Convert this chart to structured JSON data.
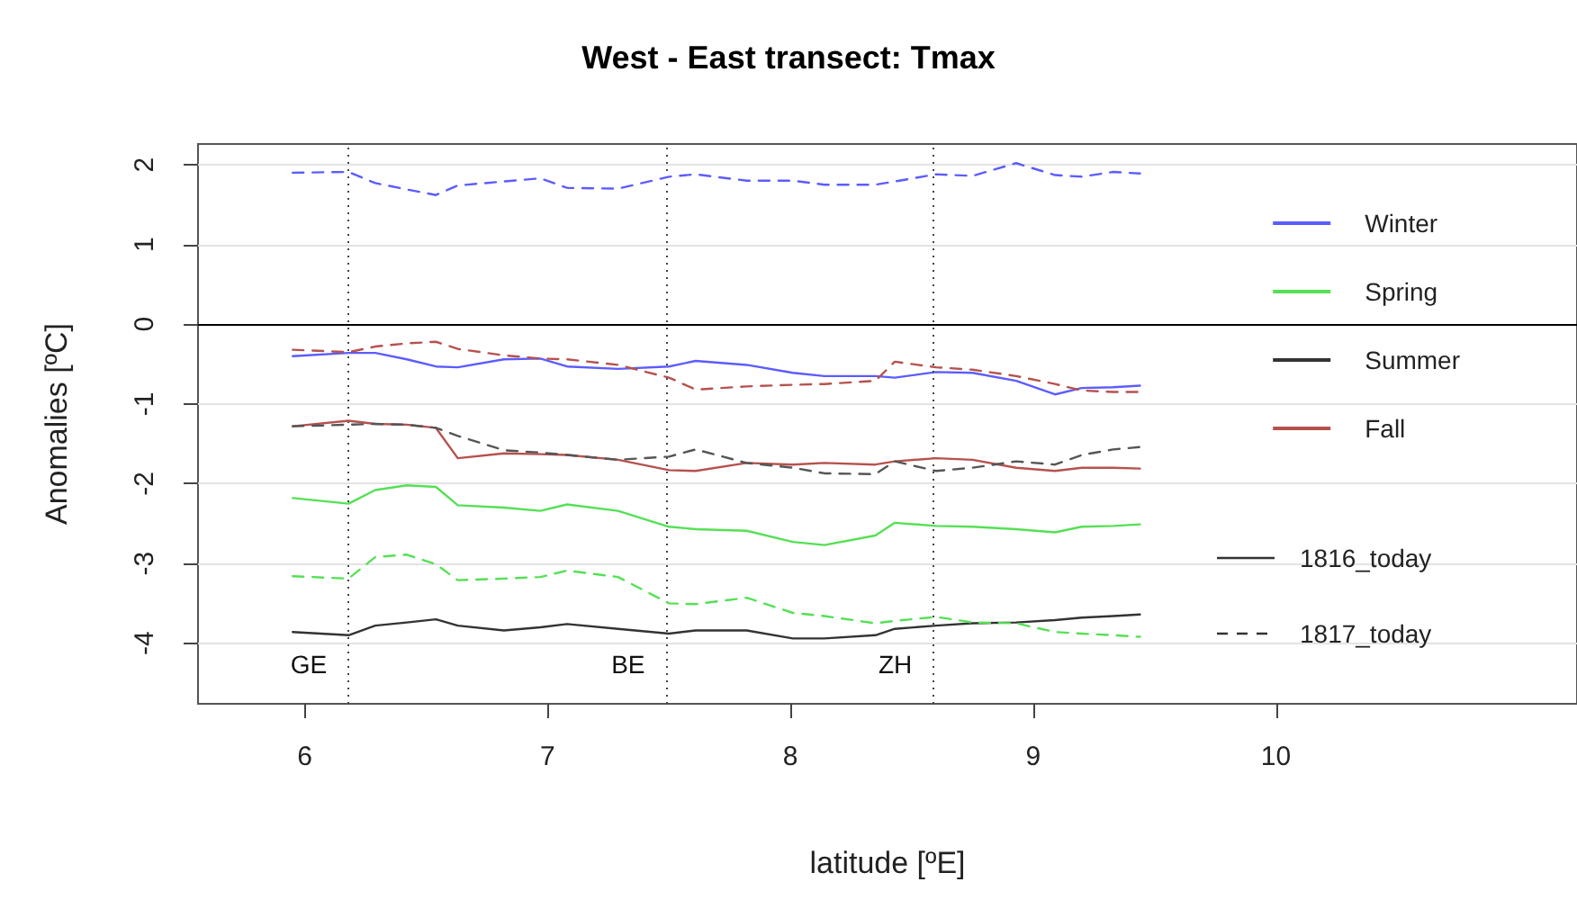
{
  "chart_data": {
    "type": "line",
    "title": "West - East transect: Tmax",
    "xlabel": "latitude [ºE]",
    "ylabel": "Anomalies [ºC]",
    "x": [
      5.95,
      6.18,
      6.29,
      6.42,
      6.54,
      6.63,
      6.82,
      6.97,
      7.08,
      7.29,
      7.5,
      7.61,
      7.82,
      8.01,
      8.14,
      8.35,
      8.43,
      8.6,
      8.75,
      8.93,
      9.09,
      9.2,
      9.33,
      9.44
    ],
    "series": [
      {
        "name": "Winter",
        "color": "#5c5cff",
        "line_style": "solid",
        "values": [
          -0.4,
          -0.36,
          -0.36,
          -0.44,
          -0.53,
          -0.54,
          -0.44,
          -0.43,
          -0.53,
          -0.56,
          -0.53,
          -0.46,
          -0.51,
          -0.61,
          -0.65,
          -0.65,
          -0.67,
          -0.6,
          -0.61,
          -0.71,
          -0.88,
          -0.8,
          -0.79,
          -0.77
        ]
      },
      {
        "name": "Spring",
        "color": "#55e055",
        "line_style": "solid",
        "values": [
          -2.18,
          -2.25,
          -2.08,
          -2.02,
          -2.04,
          -2.27,
          -2.3,
          -2.34,
          -2.26,
          -2.34,
          -2.54,
          -2.57,
          -2.59,
          -2.73,
          -2.77,
          -2.65,
          -2.49,
          -2.53,
          -2.54,
          -2.57,
          -2.61,
          -2.54,
          -2.53,
          -2.51
        ]
      },
      {
        "name": "Summer",
        "color": "#333333",
        "line_style": "solid",
        "values": [
          -3.86,
          -3.9,
          -3.78,
          -3.74,
          -3.7,
          -3.78,
          -3.84,
          -3.8,
          -3.76,
          -3.82,
          -3.88,
          -3.84,
          -3.84,
          -3.94,
          -3.94,
          -3.9,
          -3.82,
          -3.78,
          -3.75,
          -3.74,
          -3.71,
          -3.68,
          -3.66,
          -3.64
        ]
      },
      {
        "name": "Fall",
        "color": "#b5524e",
        "line_style": "solid",
        "values": [
          -1.28,
          -1.21,
          -1.25,
          -1.26,
          -1.3,
          -1.68,
          -1.62,
          -1.63,
          -1.64,
          -1.7,
          -1.83,
          -1.84,
          -1.74,
          -1.76,
          -1.74,
          -1.76,
          -1.72,
          -1.68,
          -1.7,
          -1.8,
          -1.84,
          -1.8,
          -1.8,
          -1.81
        ]
      },
      {
        "color": "#5c5cff",
        "line_style": "dashed",
        "values": [
          1.9,
          1.91,
          1.77,
          1.69,
          1.62,
          1.74,
          1.79,
          1.83,
          1.71,
          1.7,
          1.85,
          1.88,
          1.8,
          1.8,
          1.75,
          1.75,
          1.79,
          1.88,
          1.86,
          2.02,
          1.87,
          1.85,
          1.91,
          1.89
        ]
      },
      {
        "color": "#55e055",
        "line_style": "dashed",
        "values": [
          -3.16,
          -3.19,
          -2.92,
          -2.89,
          -3.01,
          -3.21,
          -3.19,
          -3.17,
          -3.09,
          -3.17,
          -3.5,
          -3.51,
          -3.43,
          -3.62,
          -3.66,
          -3.75,
          -3.72,
          -3.67,
          -3.74,
          -3.75,
          -3.86,
          -3.88,
          -3.9,
          -3.92
        ]
      },
      {
        "color": "#555555",
        "line_style": "dashed",
        "values": [
          -1.28,
          -1.26,
          -1.25,
          -1.26,
          -1.3,
          -1.4,
          -1.58,
          -1.61,
          -1.64,
          -1.7,
          -1.66,
          -1.57,
          -1.74,
          -1.8,
          -1.87,
          -1.88,
          -1.72,
          -1.84,
          -1.8,
          -1.72,
          -1.76,
          -1.64,
          -1.57,
          -1.54
        ]
      },
      {
        "color": "#b5524e",
        "line_style": "dashed",
        "values": [
          -0.32,
          -0.35,
          -0.28,
          -0.24,
          -0.22,
          -0.31,
          -0.39,
          -0.43,
          -0.44,
          -0.51,
          -0.67,
          -0.82,
          -0.78,
          -0.76,
          -0.75,
          -0.71,
          -0.47,
          -0.54,
          -0.57,
          -0.65,
          -0.75,
          -0.83,
          -0.85,
          -0.85
        ]
      }
    ],
    "xlim": [
      5.56,
      11.24
    ],
    "xticks": [
      6,
      7,
      8,
      9,
      10
    ],
    "ylim": [
      -4.76,
      2.26
    ],
    "yticks": [
      -4,
      -3,
      -2,
      -1,
      0,
      1,
      2
    ],
    "grid": "y",
    "legend": "right",
    "marker": "none",
    "ref_lines": [
      {
        "axis": "y",
        "value": 0,
        "color": "#000000",
        "line_style": "solid"
      },
      {
        "axis": "x",
        "value": 6.18,
        "label": "GE",
        "color": "#444444",
        "line_style": "dotted"
      },
      {
        "axis": "x",
        "value": 7.49,
        "label": "BE",
        "color": "#444444",
        "line_style": "dotted"
      },
      {
        "axis": "x",
        "value": 8.59,
        "label": "ZH",
        "color": "#444444",
        "line_style": "dotted"
      }
    ],
    "annotations": [
      "1816_today",
      "1817_today"
    ]
  }
}
